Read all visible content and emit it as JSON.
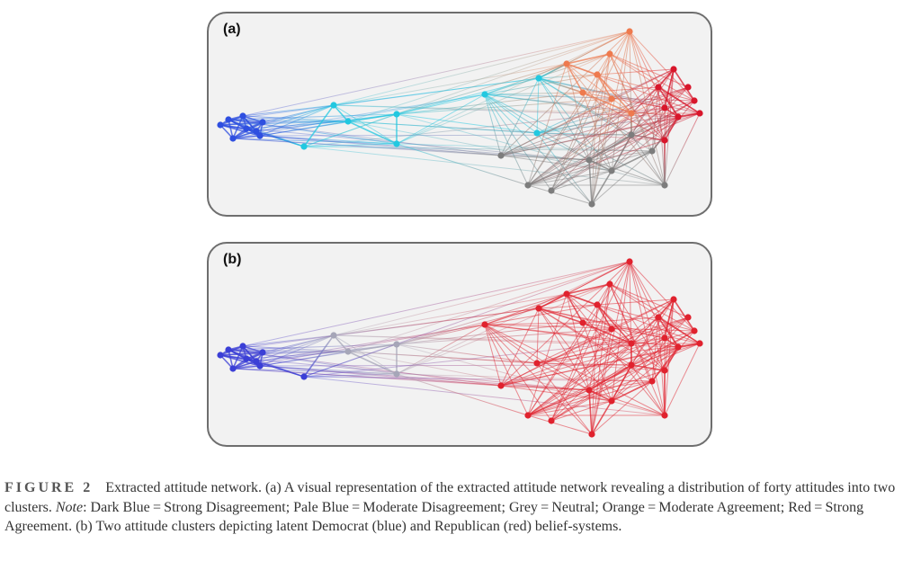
{
  "panels": [
    {
      "id": "a",
      "label": "(a)",
      "color_mode": "attitude"
    },
    {
      "id": "b",
      "label": "(b)",
      "color_mode": "cluster"
    }
  ],
  "colors": {
    "dark_blue": "#2f4fe0",
    "pale_blue": "#22c8e0",
    "grey": "#7d7d7d",
    "orange": "#ee7a4e",
    "red": "#d8162b",
    "cluster_blue": "#3b3fd6",
    "cluster_red": "#e0222e",
    "cluster_neutral": "#a6a6b8"
  },
  "caption": {
    "figure": "FIGURE 2",
    "part1": "Extracted attitude network. (a) A visual representation of the extracted attitude network revealing a distribution of forty attitudes into two clusters. ",
    "note_label": "Note",
    "part2": ": Dark Blue = Strong Disagreement; Pale Blue = Moderate Disagreement; Grey = Neutral; Orange = Moderate Agreement; Red = Strong Agreement. (b) Two attitude clusters depicting latent Democrat (blue) and Republican (red) belief-systems."
  },
  "nodes": [
    {
      "id": 1,
      "att": "dark_blue",
      "cl": "blue"
    },
    {
      "id": 2,
      "att": "dark_blue",
      "cl": "blue"
    },
    {
      "id": 3,
      "att": "dark_blue",
      "cl": "blue"
    },
    {
      "id": 4,
      "att": "dark_blue",
      "cl": "blue"
    },
    {
      "id": 5,
      "att": "dark_blue",
      "cl": "blue"
    },
    {
      "id": 6,
      "att": "dark_blue",
      "cl": "blue"
    },
    {
      "id": 7,
      "att": "dark_blue",
      "cl": "blue"
    },
    {
      "id": 8,
      "att": "dark_blue",
      "cl": "blue"
    },
    {
      "id": 9,
      "att": "pale_blue",
      "cl": "neutral"
    },
    {
      "id": 10,
      "att": "pale_blue",
      "cl": "neutral"
    },
    {
      "id": 11,
      "att": "pale_blue",
      "cl": "neutral"
    },
    {
      "id": 12,
      "att": "pale_blue",
      "cl": "blue"
    },
    {
      "id": 13,
      "att": "pale_blue",
      "cl": "neutral"
    },
    {
      "id": 14,
      "att": "pale_blue",
      "cl": "red"
    },
    {
      "id": 15,
      "att": "pale_blue",
      "cl": "red"
    },
    {
      "id": 16,
      "att": "pale_blue",
      "cl": "red"
    },
    {
      "id": 17,
      "att": "grey",
      "cl": "red"
    },
    {
      "id": 18,
      "att": "grey",
      "cl": "red"
    },
    {
      "id": 19,
      "att": "grey",
      "cl": "red"
    },
    {
      "id": 20,
      "att": "grey",
      "cl": "red"
    },
    {
      "id": 21,
      "att": "grey",
      "cl": "red"
    },
    {
      "id": 22,
      "att": "grey",
      "cl": "red"
    },
    {
      "id": 23,
      "att": "grey",
      "cl": "red"
    },
    {
      "id": 24,
      "att": "grey",
      "cl": "red"
    },
    {
      "id": 25,
      "att": "grey",
      "cl": "red"
    },
    {
      "id": 26,
      "att": "orange",
      "cl": "red"
    },
    {
      "id": 27,
      "att": "orange",
      "cl": "red"
    },
    {
      "id": 28,
      "att": "orange",
      "cl": "red"
    },
    {
      "id": 29,
      "att": "orange",
      "cl": "red"
    },
    {
      "id": 30,
      "att": "orange",
      "cl": "red"
    },
    {
      "id": 31,
      "att": "orange",
      "cl": "red"
    },
    {
      "id": 32,
      "att": "orange",
      "cl": "red"
    },
    {
      "id": 33,
      "att": "red",
      "cl": "red"
    },
    {
      "id": 34,
      "att": "red",
      "cl": "red"
    },
    {
      "id": 35,
      "att": "red",
      "cl": "red"
    },
    {
      "id": 36,
      "att": "red",
      "cl": "red"
    },
    {
      "id": 37,
      "att": "red",
      "cl": "red"
    },
    {
      "id": 38,
      "att": "red",
      "cl": "red"
    },
    {
      "id": 39,
      "att": "red",
      "cl": "red"
    },
    {
      "id": 40,
      "att": "red",
      "cl": "red"
    }
  ]
}
